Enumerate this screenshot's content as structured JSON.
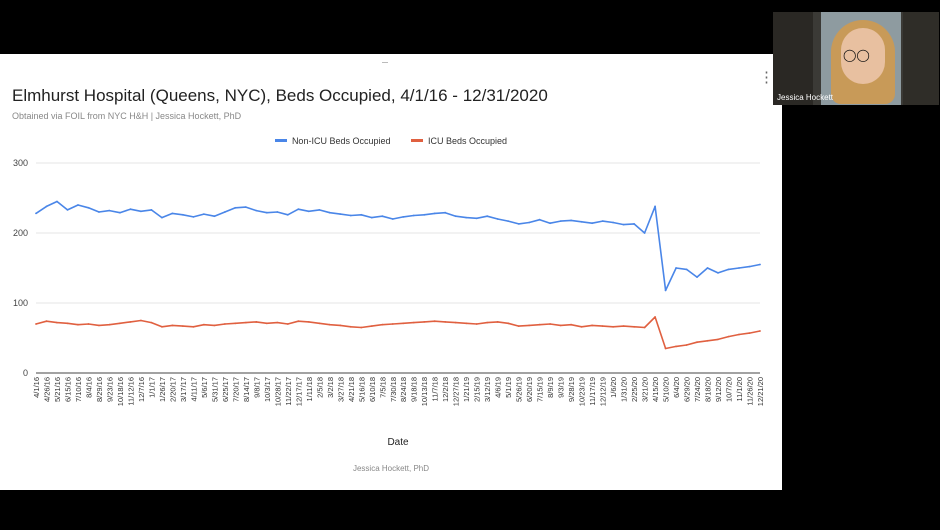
{
  "slide": {
    "title": "Elmhurst Hospital (Queens, NYC), Beds Occupied, 4/1/16 - 12/31/2020",
    "subtitle": "Obtained via FOIL from NYC H&H | Jessica Hockett, PhD",
    "menu_icon": "⋮",
    "footer": "Jessica Hockett, PhD"
  },
  "video_tile": {
    "participant_name": "Jessica Hockett"
  },
  "chart_data": {
    "type": "line",
    "title": "Elmhurst Hospital (Queens, NYC), Beds Occupied, 4/1/16 - 12/31/2020",
    "subtitle": "Obtained via FOIL from NYC H&H | Jessica Hockett, PhD",
    "xlabel": "Date",
    "ylabel": "",
    "ylim": [
      0,
      300
    ],
    "yticks": [
      0,
      100,
      200,
      300
    ],
    "grid": true,
    "legend_position": "top",
    "x_tick_labels": [
      "4/1/16",
      "4/26/16",
      "5/21/16",
      "6/15/16",
      "7/10/16",
      "8/4/16",
      "8/29/16",
      "9/23/16",
      "10/18/16",
      "11/12/16",
      "12/7/16",
      "1/1/17",
      "1/26/17",
      "2/20/17",
      "3/17/17",
      "4/11/17",
      "5/6/17",
      "5/31/17",
      "6/25/17",
      "7/20/17",
      "8/14/17",
      "9/8/17",
      "10/3/17",
      "10/28/17",
      "11/22/17",
      "12/17/17",
      "1/11/18",
      "2/5/18",
      "3/2/18",
      "3/27/18",
      "4/21/18",
      "5/16/18",
      "6/10/18",
      "7/5/18",
      "7/30/18",
      "8/24/18",
      "9/18/18",
      "10/13/18",
      "11/7/18",
      "12/2/18",
      "12/27/18",
      "1/21/19",
      "2/15/19",
      "3/12/19",
      "4/6/19",
      "5/1/19",
      "5/26/19",
      "6/20/19",
      "7/15/19",
      "8/9/19",
      "9/3/19",
      "9/28/19",
      "10/23/19",
      "11/17/19",
      "12/12/19",
      "1/6/20",
      "1/31/20",
      "2/25/20",
      "3/21/20",
      "4/15/20",
      "5/10/20",
      "6/4/20",
      "6/29/20",
      "7/24/20",
      "8/18/20",
      "9/12/20",
      "10/7/20",
      "11/1/20",
      "11/26/20",
      "12/21/20"
    ],
    "series": [
      {
        "name": "Non-ICU Beds Occupied",
        "color": "#4a86e8",
        "values": [
          228,
          238,
          245,
          233,
          240,
          236,
          230,
          232,
          229,
          234,
          231,
          233,
          222,
          228,
          226,
          223,
          227,
          224,
          230,
          236,
          237,
          232,
          229,
          230,
          226,
          234,
          231,
          233,
          229,
          227,
          225,
          226,
          222,
          224,
          220,
          223,
          225,
          226,
          228,
          229,
          224,
          222,
          221,
          224,
          220,
          217,
          213,
          215,
          219,
          214,
          217,
          218,
          216,
          214,
          217,
          215,
          212,
          213,
          200,
          238,
          118,
          150,
          148,
          137,
          150,
          143,
          148,
          150,
          152,
          155
        ]
      },
      {
        "name": "ICU Beds Occupied",
        "color": "#e06040",
        "values": [
          70,
          74,
          72,
          71,
          69,
          70,
          68,
          69,
          71,
          73,
          75,
          72,
          66,
          68,
          67,
          66,
          69,
          68,
          70,
          71,
          72,
          73,
          71,
          72,
          70,
          74,
          73,
          71,
          69,
          68,
          66,
          65,
          67,
          69,
          70,
          71,
          72,
          73,
          74,
          73,
          72,
          71,
          70,
          72,
          73,
          71,
          67,
          68,
          69,
          70,
          68,
          69,
          66,
          68,
          67,
          66,
          67,
          66,
          65,
          80,
          35,
          38,
          40,
          44,
          46,
          48,
          52,
          55,
          57,
          60
        ]
      }
    ]
  }
}
